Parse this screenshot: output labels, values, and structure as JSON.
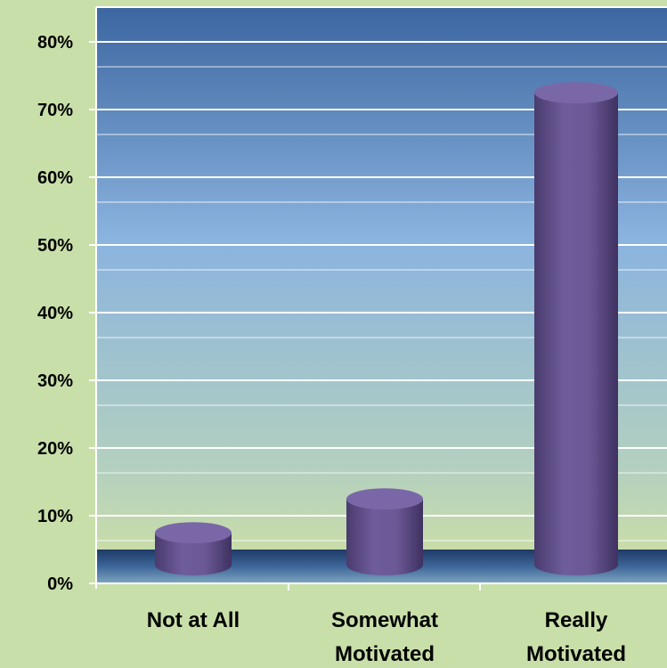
{
  "chart_data": {
    "type": "bar",
    "categories": [
      [
        "Not at All"
      ],
      [
        "Somewhat",
        "Motivated"
      ],
      [
        "Really",
        "Motivated"
      ]
    ],
    "values": [
      8,
      13,
      73
    ],
    "ylim": [
      0,
      80
    ],
    "yticks": [
      "0%",
      "10%",
      "20%",
      "30%",
      "40%",
      "50%",
      "60%",
      "70%",
      "80%"
    ],
    "grid": true,
    "colors": {
      "bar": "#6a5893",
      "bar_top": "#7b69a7",
      "plot_top": "#3f6aa2",
      "plot_mid": "#8fb6df",
      "plot_bottom": "#cfe0a6",
      "floor": "#2f4f7d",
      "background": "#c9dfaa"
    }
  }
}
